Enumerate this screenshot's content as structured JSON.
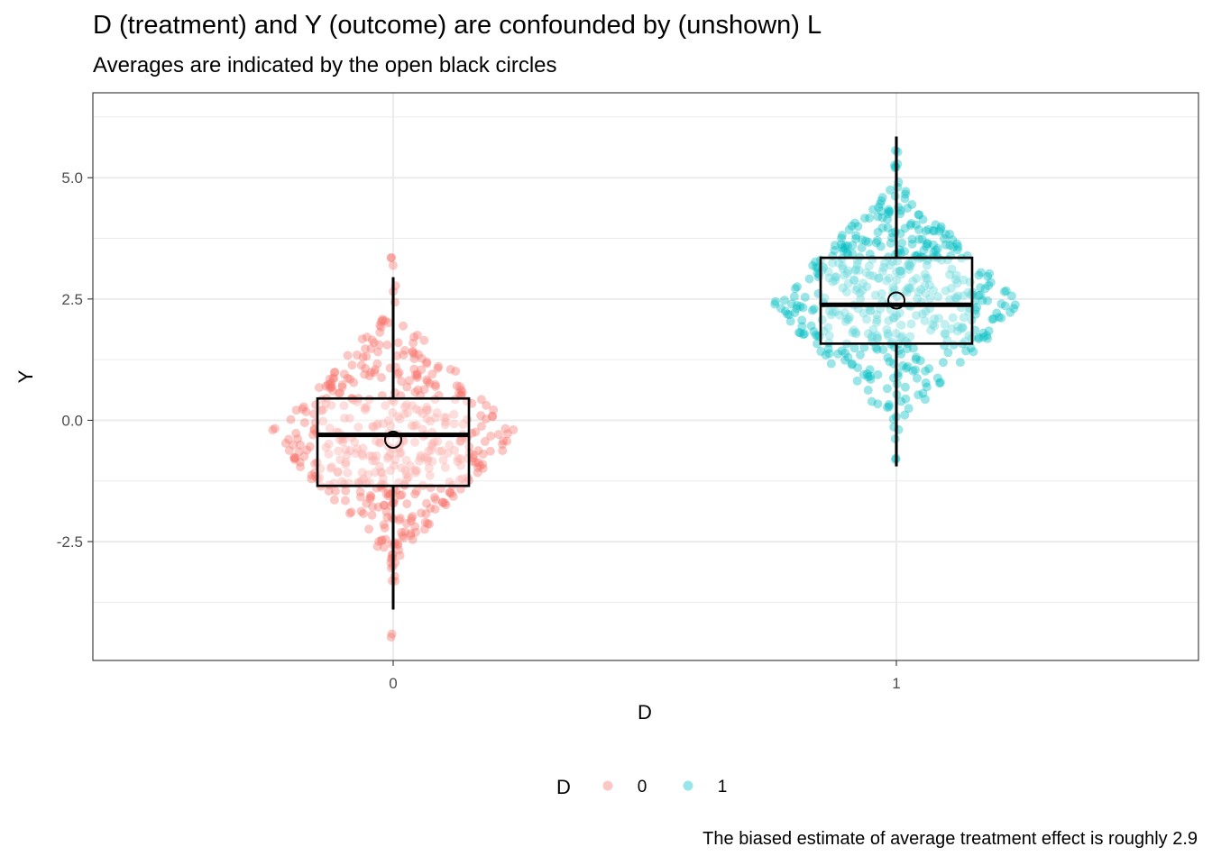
{
  "chart_data": {
    "type": "box+jitter",
    "title": "D (treatment) and Y (outcome) are confounded by (unshown) L",
    "subtitle": "Averages are indicated by the open black circles",
    "caption": "The biased estimate of average treatment effect is roughly 2.9",
    "xlabel": "D",
    "ylabel": "Y",
    "categories": [
      "0",
      "1"
    ],
    "ylim": [
      -4.95,
      6.75
    ],
    "y_ticks": [
      -2.5,
      0.0,
      2.5,
      5.0
    ],
    "y_tick_labels": [
      "-2.5",
      "0.0",
      "2.5",
      "5.0"
    ],
    "legend": {
      "title": "D",
      "position": "bottom",
      "entries": [
        "0",
        "1"
      ]
    },
    "series": [
      {
        "name": "0",
        "color": "#F8766D",
        "box": {
          "min": -3.9,
          "q1": -1.35,
          "median": -0.3,
          "q3": 0.45,
          "max": 2.95
        },
        "mean": -0.4,
        "n_points": 500,
        "point_range": [
          -4.5,
          3.35
        ],
        "point_sd": 1.2
      },
      {
        "name": "1",
        "color": "#00BFC4",
        "box": {
          "min": -0.95,
          "q1": 1.58,
          "median": 2.38,
          "q3": 3.35,
          "max": 5.85
        },
        "mean": 2.47,
        "n_points": 500,
        "point_range": [
          -1.9,
          6.5
        ],
        "point_sd": 1.15
      }
    ]
  }
}
